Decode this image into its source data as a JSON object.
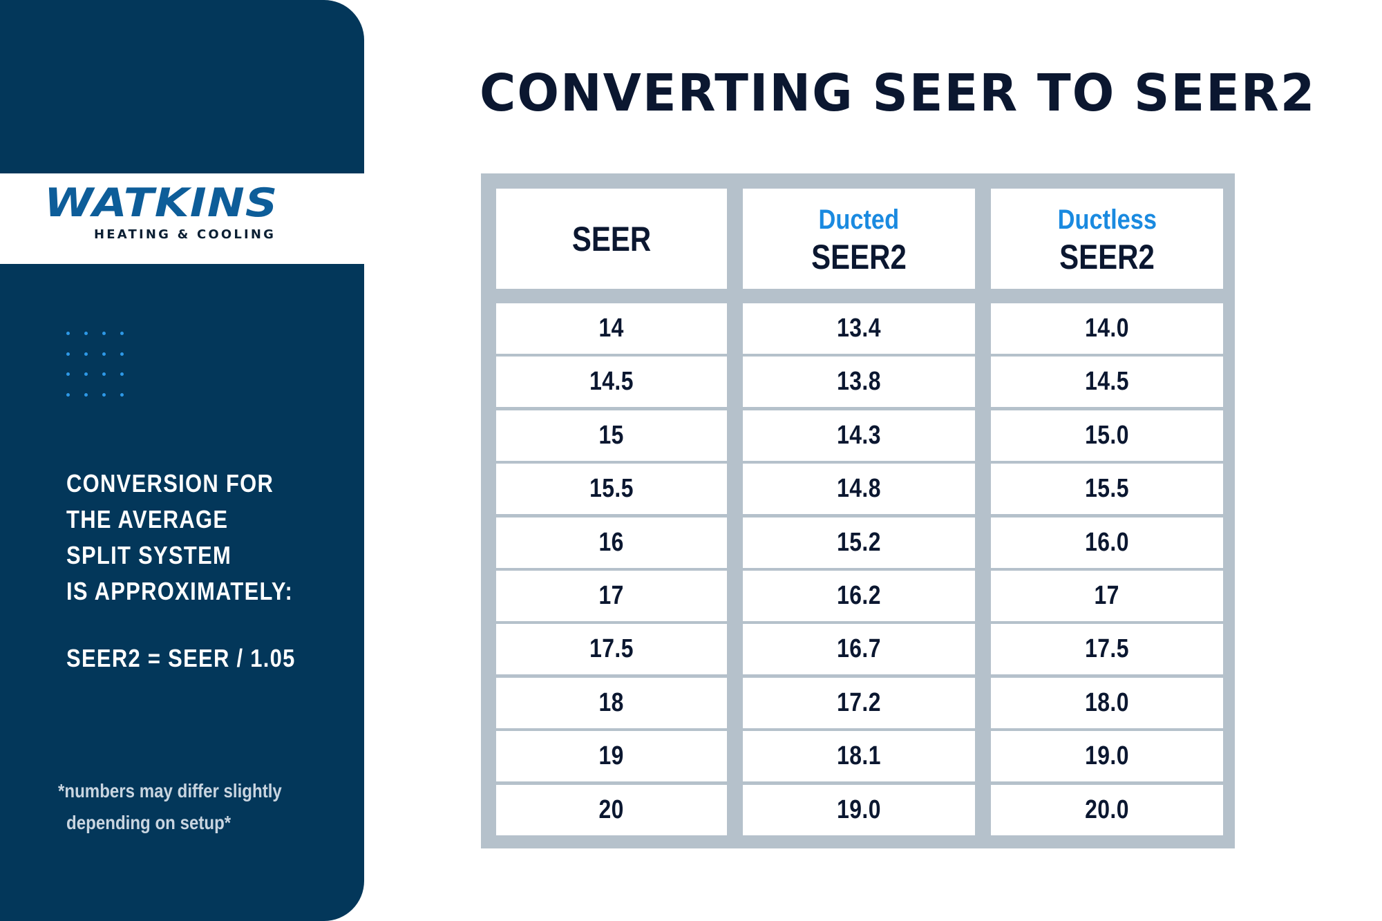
{
  "title": "CONVERTING SEER TO SEER2",
  "brand": {
    "name": "WATKINS",
    "tagline": "HEATING & COOLING",
    "colors": {
      "sidebar": "#03375a",
      "logo_blue": "#0d5d99",
      "accent_blue": "#1a8ae0",
      "dots": "#2e98e6",
      "table_frame": "#b5c1cb",
      "title_text": "#0b1730"
    }
  },
  "sidebar": {
    "description_lines": [
      "CONVERSION FOR",
      "THE AVERAGE",
      "SPLIT SYSTEM",
      "IS APPROXIMATELY:"
    ],
    "formula": "SEER2 = SEER / 1.05",
    "footnote_lines": [
      "*numbers may differ slightly",
      "depending on setup*"
    ]
  },
  "table": {
    "headers": [
      {
        "accent": "",
        "main": "SEER"
      },
      {
        "accent": "Ducted",
        "main": "SEER2"
      },
      {
        "accent": "Ductless",
        "main": "SEER2"
      }
    ],
    "rows": [
      [
        "14",
        "13.4",
        "14.0"
      ],
      [
        "14.5",
        "13.8",
        "14.5"
      ],
      [
        "15",
        "14.3",
        "15.0"
      ],
      [
        "15.5",
        "14.8",
        "15.5"
      ],
      [
        "16",
        "15.2",
        "16.0"
      ],
      [
        "17",
        "16.2",
        "17"
      ],
      [
        "17.5",
        "16.7",
        "17.5"
      ],
      [
        "18",
        "17.2",
        "18.0"
      ],
      [
        "19",
        "18.1",
        "19.0"
      ],
      [
        "20",
        "19.0",
        "20.0"
      ]
    ]
  }
}
